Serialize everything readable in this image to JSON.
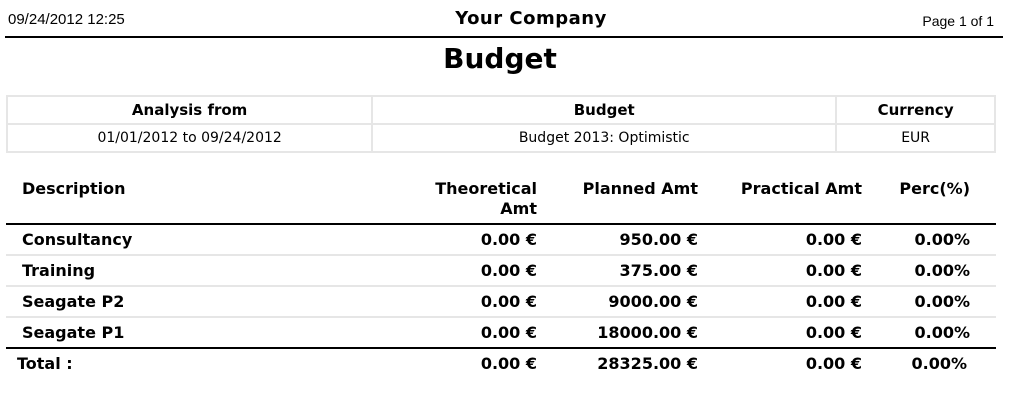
{
  "header": {
    "datetime": "09/24/2012  12:25",
    "company": "Your Company",
    "page": "Page 1 of 1"
  },
  "title": "Budget",
  "info": {
    "headers": [
      "Analysis from",
      "Budget",
      "Currency"
    ],
    "values": [
      "01/01/2012 to 09/24/2012",
      "Budget 2013: Optimistic",
      "EUR"
    ]
  },
  "columns": {
    "description": "Description",
    "theoretical_line1": "Theoretical",
    "theoretical_line2": "Amt",
    "planned": "Planned Amt",
    "practical": "Practical Amt",
    "perc": "Perc(%)"
  },
  "rows": [
    {
      "description": "Consultancy",
      "theoretical": "0.00 €",
      "planned": "950.00 €",
      "practical": "0.00 €",
      "perc": "0.00%"
    },
    {
      "description": "Training",
      "theoretical": "0.00 €",
      "planned": "375.00 €",
      "practical": "0.00 €",
      "perc": "0.00%"
    },
    {
      "description": "Seagate P2",
      "theoretical": "0.00 €",
      "planned": "9000.00 €",
      "practical": "0.00 €",
      "perc": "0.00%"
    },
    {
      "description": "Seagate P1",
      "theoretical": "0.00 €",
      "planned": "18000.00 €",
      "practical": "0.00 €",
      "perc": "0.00%"
    }
  ],
  "total": {
    "label": "Total :",
    "theoretical": "0.00 €",
    "planned": "28325.00 €",
    "practical": "0.00 €",
    "perc": "0.00%"
  }
}
